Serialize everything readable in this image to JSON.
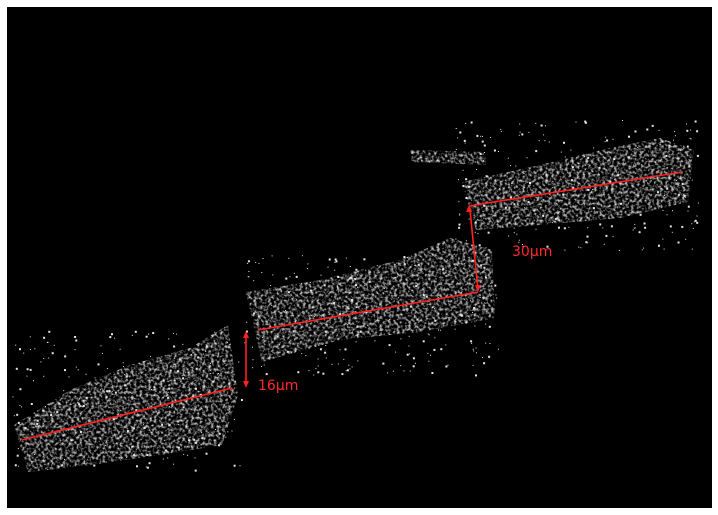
{
  "annotations": {
    "labels": [
      "16µm",
      "30µm"
    ]
  }
}
